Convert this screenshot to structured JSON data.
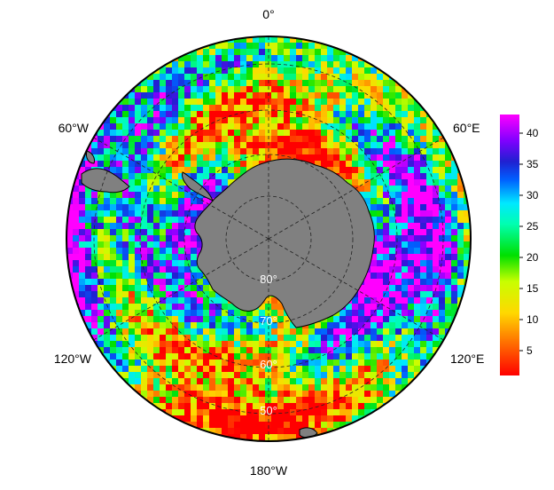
{
  "map": {
    "projection": "south-polar-stereographic",
    "longitude_labels": [
      "0°",
      "60°E",
      "120°E",
      "180°W",
      "120°W",
      "60°W"
    ],
    "latitude_labels": [
      "80°",
      "70°",
      "60°",
      "50°"
    ],
    "land_color": "#808080",
    "graticule_style": "dashed"
  },
  "colorbar": {
    "ticks": [
      "5",
      "10",
      "15",
      "20",
      "25",
      "30",
      "35",
      "40"
    ],
    "range": [
      1,
      43
    ],
    "colormap": "rainbow (red-orange-yellow-green-cyan-blue-purple-magenta)"
  }
}
